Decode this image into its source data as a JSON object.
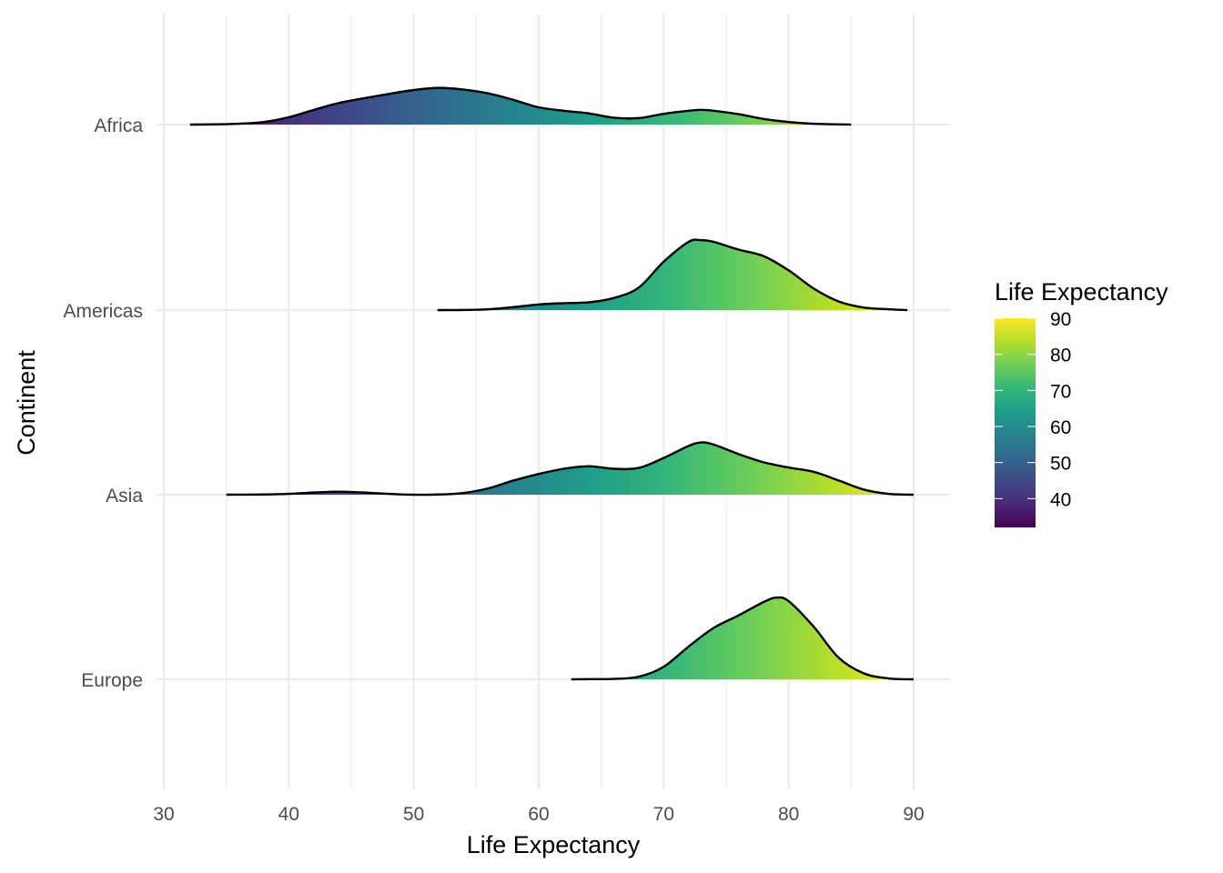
{
  "chart_data": {
    "type": "ridgeline",
    "xlabel": "Life Expectancy",
    "ylabel": "Continent",
    "xlim": [
      30,
      90
    ],
    "x_ticks": [
      30,
      40,
      50,
      60,
      70,
      80,
      90
    ],
    "categories": [
      "Africa",
      "Americas",
      "Asia",
      "Europe"
    ],
    "grid": true,
    "legend": {
      "title": "Life Expectancy",
      "placement": "right",
      "ticks": [
        40,
        50,
        60,
        70,
        80,
        90
      ],
      "range": [
        32,
        90
      ],
      "palette": "viridis",
      "colors": [
        "#440154",
        "#482878",
        "#3e4989",
        "#31688e",
        "#26828e",
        "#1f9e89",
        "#35b779",
        "#6ece58",
        "#b5de2b",
        "#fde725"
      ]
    },
    "series": [
      {
        "name": "Africa",
        "x_range": [
          32.1,
          85.0
        ],
        "x": [
          32.1,
          34,
          36,
          38,
          40,
          42,
          44,
          46,
          48,
          50,
          52,
          54,
          56,
          58,
          60,
          62,
          64,
          66,
          68,
          70,
          72,
          73,
          74,
          76,
          78,
          80,
          82,
          85
        ],
        "density": [
          0.0,
          0.005,
          0.02,
          0.06,
          0.17,
          0.34,
          0.5,
          0.61,
          0.71,
          0.8,
          0.85,
          0.81,
          0.72,
          0.57,
          0.4,
          0.32,
          0.26,
          0.16,
          0.15,
          0.25,
          0.32,
          0.34,
          0.32,
          0.24,
          0.13,
          0.06,
          0.02,
          0.0
        ]
      },
      {
        "name": "Americas",
        "x_range": [
          51.9,
          89.5
        ],
        "x": [
          51.9,
          54,
          56,
          58,
          60,
          62,
          64,
          66,
          68,
          70,
          72,
          73,
          74,
          76,
          78,
          80,
          82,
          84,
          86,
          88,
          89.5
        ],
        "density": [
          0.0,
          0.003,
          0.02,
          0.07,
          0.13,
          0.16,
          0.18,
          0.28,
          0.52,
          1.12,
          1.58,
          1.62,
          1.58,
          1.4,
          1.25,
          0.92,
          0.5,
          0.2,
          0.06,
          0.02,
          0.0
        ],
        "peak_x": 73
      },
      {
        "name": "Asia",
        "x_range": [
          35.0,
          90.0
        ],
        "x": [
          35,
          38,
          40,
          42,
          44,
          46,
          48,
          50,
          52,
          54,
          56,
          58,
          60,
          62,
          64,
          66,
          68,
          70,
          72,
          73,
          74,
          76,
          78,
          80,
          82,
          84,
          86,
          88,
          90
        ],
        "density": [
          0.0,
          0.005,
          0.02,
          0.05,
          0.07,
          0.05,
          0.02,
          0.0,
          0.005,
          0.04,
          0.15,
          0.33,
          0.48,
          0.6,
          0.66,
          0.6,
          0.62,
          0.85,
          1.13,
          1.21,
          1.16,
          0.94,
          0.75,
          0.63,
          0.53,
          0.33,
          0.12,
          0.02,
          0.0
        ]
      },
      {
        "name": "Europe",
        "x_range": [
          62.6,
          90.0
        ],
        "x": [
          62.6,
          64,
          66,
          68,
          70,
          72,
          74,
          76,
          78,
          79,
          80,
          82,
          84,
          86,
          88,
          90
        ],
        "density": [
          0.0,
          0.003,
          0.01,
          0.06,
          0.29,
          0.76,
          1.19,
          1.48,
          1.79,
          1.89,
          1.81,
          1.22,
          0.5,
          0.14,
          0.02,
          0.0
        ],
        "peak_x": 79
      }
    ]
  }
}
